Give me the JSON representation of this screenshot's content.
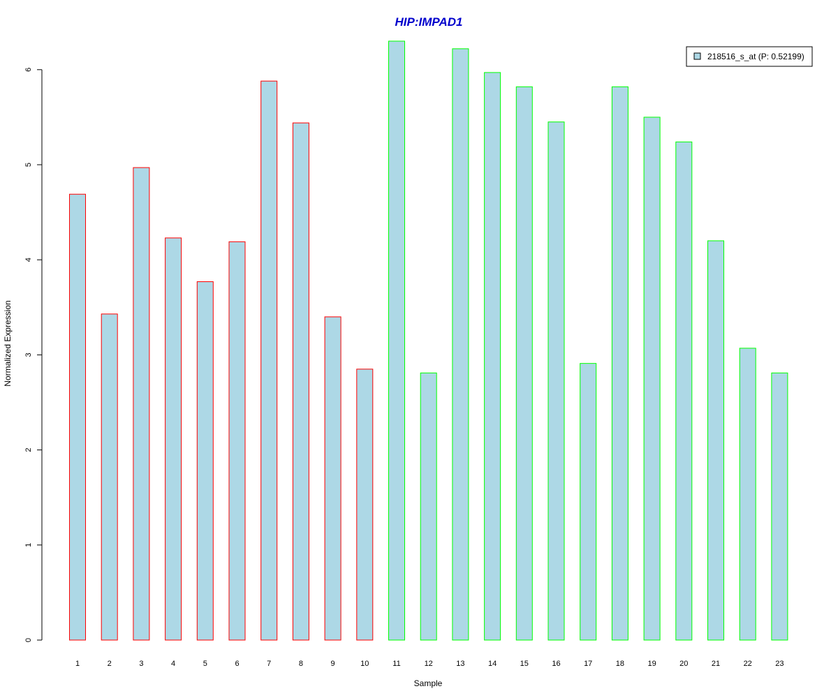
{
  "chart_data": {
    "type": "bar",
    "title": "HIP:IMPAD1",
    "xlabel": "Sample",
    "ylabel": "Normalized Expression",
    "categories": [
      "1",
      "2",
      "3",
      "4",
      "5",
      "6",
      "7",
      "8",
      "9",
      "10",
      "11",
      "12",
      "13",
      "14",
      "15",
      "16",
      "17",
      "18",
      "19",
      "20",
      "21",
      "22",
      "23"
    ],
    "series": [
      {
        "name": "218516_s_at (P: 0.52199)",
        "values": [
          4.69,
          3.43,
          4.97,
          4.23,
          3.77,
          4.19,
          5.88,
          5.44,
          3.4,
          2.85,
          6.3,
          2.81,
          6.22,
          5.97,
          5.82,
          5.45,
          2.91,
          5.82,
          5.5,
          5.24,
          4.2,
          3.07,
          2.81
        ]
      }
    ],
    "groups": [
      "red",
      "red",
      "red",
      "red",
      "red",
      "red",
      "red",
      "red",
      "red",
      "red",
      "green",
      "green",
      "green",
      "green",
      "green",
      "green",
      "green",
      "green",
      "green",
      "green",
      "green",
      "green",
      "green"
    ],
    "yticks": [
      0,
      1,
      2,
      3,
      4,
      5,
      6
    ],
    "ylim": [
      0,
      6.3
    ],
    "grid": false,
    "legend_position": "top-right",
    "colors": {
      "bar_fill": "#add8e6",
      "red_border": "#ff0000",
      "green_border": "#00ff00",
      "title": "#0000cc",
      "axis": "#000000"
    }
  }
}
